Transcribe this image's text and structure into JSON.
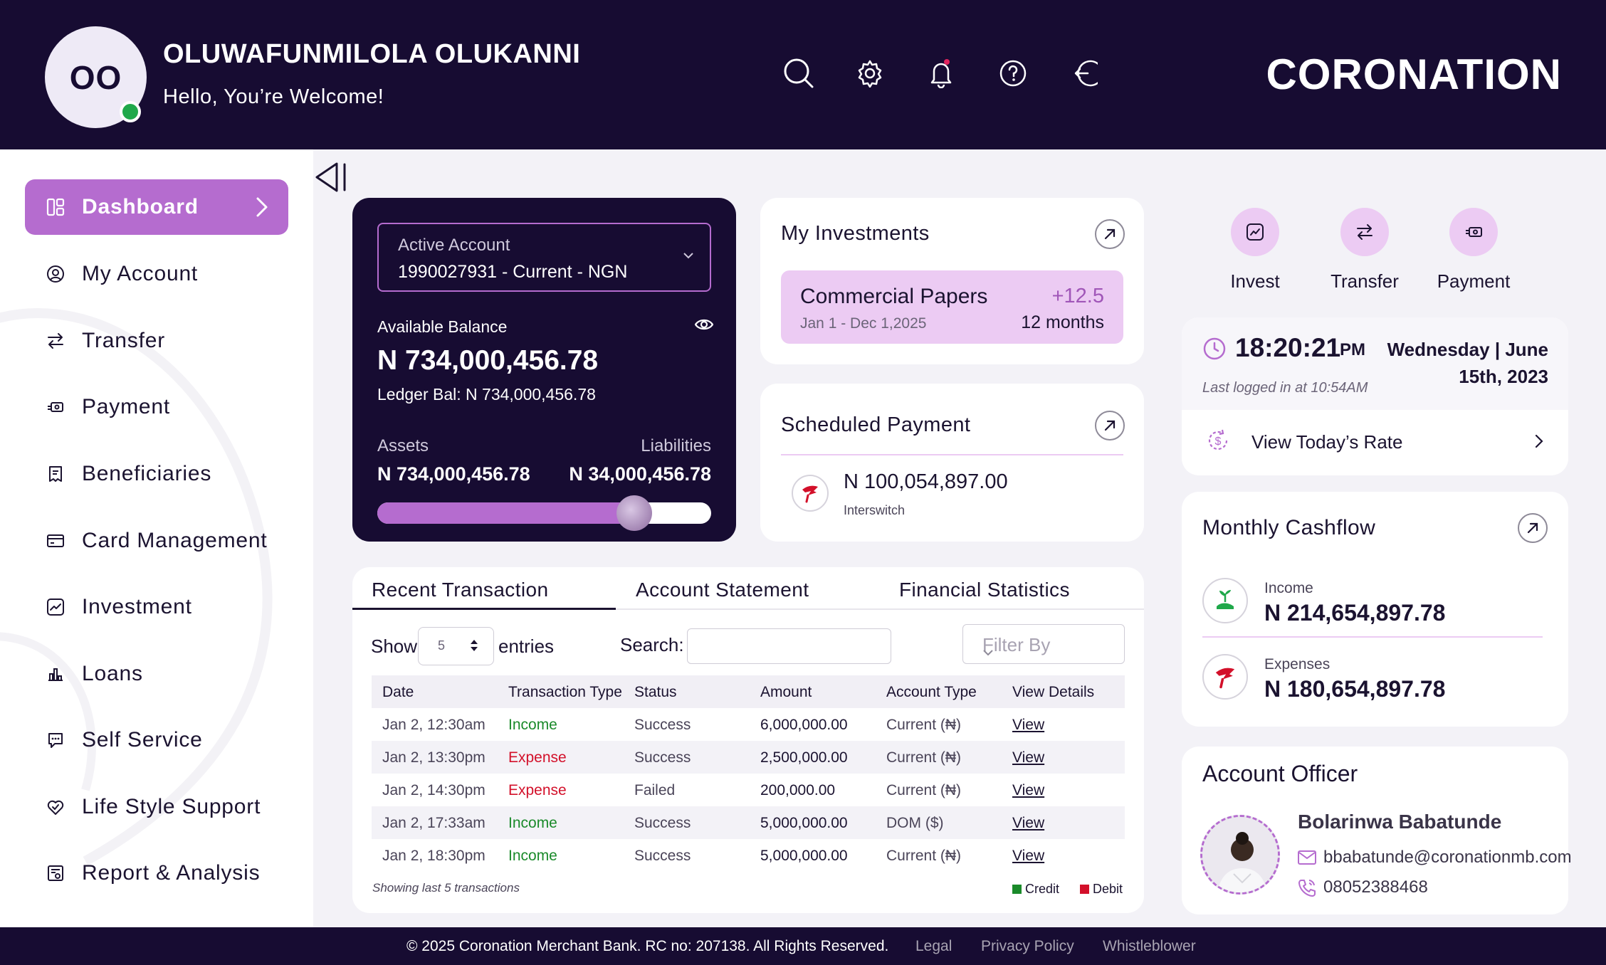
{
  "header": {
    "avatar_initials": "OO",
    "user_name": "OLUWAFUNMILOLA OLUKANNI",
    "greeting": "Hello, You’re Welcome!",
    "brand": "CORONATION",
    "icons": [
      "search-icon",
      "gear-icon",
      "bell-icon",
      "help-icon",
      "logout-icon"
    ]
  },
  "sidebar": {
    "items": [
      {
        "label": "Dashboard",
        "icon": "dashboard-icon",
        "active": true
      },
      {
        "label": "My Account",
        "icon": "user-circle-icon"
      },
      {
        "label": "Transfer",
        "icon": "transfer-icon"
      },
      {
        "label": "Payment",
        "icon": "payment-icon"
      },
      {
        "label": "Beneficiaries",
        "icon": "beneficiaries-icon"
      },
      {
        "label": "Card Management",
        "icon": "card-icon"
      },
      {
        "label": "Investment",
        "icon": "investment-icon"
      },
      {
        "label": "Loans",
        "icon": "loans-icon"
      },
      {
        "label": "Self Service",
        "icon": "self-service-icon"
      },
      {
        "label": "Life Style Support",
        "icon": "lifestyle-icon"
      },
      {
        "label": "Report & Analysis",
        "icon": "report-icon"
      }
    ]
  },
  "account": {
    "active_label": "Active Account",
    "active_value": "1990027931 - Current - NGN",
    "available_label": "Available Balance",
    "available_value": "N 734,000,456.78",
    "ledger_label": "Ledger Bal:",
    "ledger_value": "N 734,000,456.78",
    "assets_label": "Assets",
    "assets_value": "N 734,000,456.78",
    "liabilities_label": "Liabilities",
    "liabilities_value": "N 34,000,456.78",
    "assets_ratio": 0.77
  },
  "investments": {
    "title": "My Investments",
    "item_name": "Commercial Papers",
    "item_date": "Jan 1 - Dec 1,2025",
    "item_rate": "+12.5",
    "item_term": "12 months"
  },
  "scheduled": {
    "title": "Scheduled Payment",
    "amount": "N 100,054,897.00",
    "payee": "Interswitch"
  },
  "tabs": [
    "Recent Transaction",
    "Account Statement",
    "Financial Statistics"
  ],
  "table_controls": {
    "show_label": "Show",
    "entries_value": "5",
    "entries_label": "entries",
    "search_label": "Search:",
    "filter_placeholder": "Filter By"
  },
  "transactions": {
    "headers": [
      "Date",
      "Transaction Type",
      "Status",
      "Amount",
      "Account Type",
      "View Details"
    ],
    "rows": [
      [
        "Jan 2, 12:30am",
        "Income",
        "Success",
        "6,000,000.00",
        "Current (₦)",
        "View"
      ],
      [
        "Jan 2, 13:30pm",
        "Expense",
        "Success",
        "2,500,000.00",
        "Current (₦)",
        "View"
      ],
      [
        "Jan 2, 14:30pm",
        "Expense",
        "Failed",
        "200,000.00",
        "Current (₦)",
        "View"
      ],
      [
        "Jan 2, 17:33am",
        "Income",
        "Success",
        "5,000,000.00",
        "DOM ($)",
        "View"
      ],
      [
        "Jan 2, 18:30pm",
        "Income",
        "Success",
        "5,000,000.00",
        "Current (₦)",
        "View"
      ]
    ],
    "note": "Showing last 5 transactions",
    "legend_credit": "Credit",
    "legend_debit": "Debit",
    "credit_color": "#1a8a2a",
    "debit_color": "#d3102a"
  },
  "quick_actions": [
    {
      "label": "Invest",
      "icon": "invest-icon"
    },
    {
      "label": "Transfer",
      "icon": "transfer-icon"
    },
    {
      "label": "Payment",
      "icon": "payment-icon"
    }
  ],
  "clock": {
    "time": "18:20:21",
    "meridiem": "PM",
    "date_line1": "Wednesday | June",
    "date_line2": "15th, 2023",
    "last_login": "Last logged in at 10:54AM",
    "rate_link": "View Today’s Rate"
  },
  "cashflow": {
    "title": "Monthly Cashflow",
    "income_label": "Income",
    "income_value": "N 214,654,897.78",
    "expenses_label": "Expenses",
    "expenses_value": "N 180,654,897.78"
  },
  "officer": {
    "title": "Account Officer",
    "name": "Bolarinwa Babatunde",
    "email": "bbabatunde@coronationmb.com",
    "phone": "08052388468"
  },
  "footer": {
    "copyright": "© 2025 Coronation Merchant Bank. RC no: 207138. All Rights Reserved.",
    "links": [
      "Legal",
      "Privacy Policy",
      "Whistleblower"
    ]
  },
  "colors": {
    "navy": "#170c32",
    "accent": "#b56ccf",
    "accent_light": "#eccbf3"
  }
}
